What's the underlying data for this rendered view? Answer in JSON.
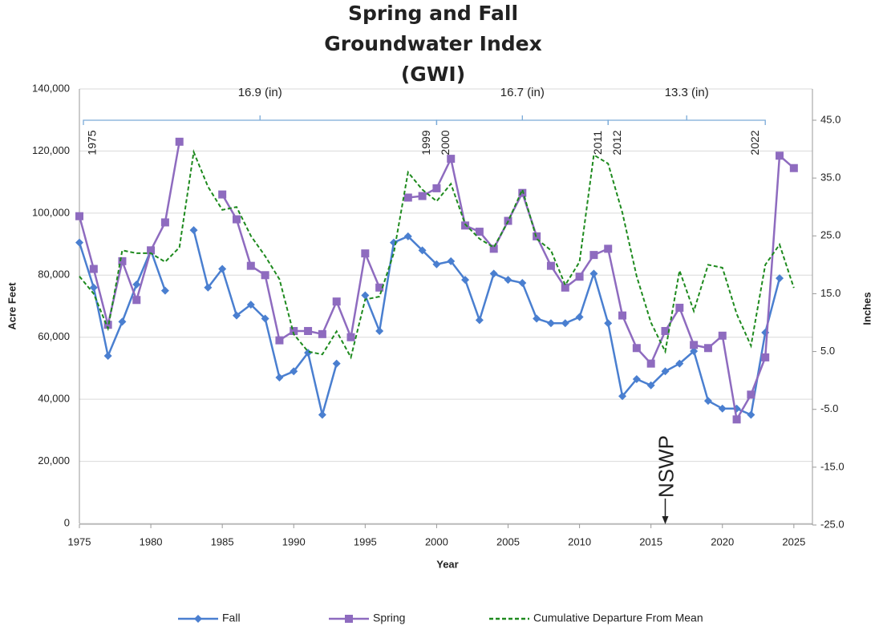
{
  "chart_data": {
    "type": "line",
    "title": [
      "Spring and Fall",
      "Groundwater Index",
      "(GWI)"
    ],
    "x_label": "Year",
    "y_label": "Acre Feet",
    "y2_label": "Inches",
    "x": [
      1975,
      1976,
      1977,
      1978,
      1979,
      1980,
      1981,
      1982,
      1983,
      1984,
      1985,
      1986,
      1987,
      1988,
      1989,
      1990,
      1991,
      1992,
      1993,
      1994,
      1995,
      1996,
      1997,
      1998,
      1999,
      2000,
      2001,
      2002,
      2003,
      2004,
      2005,
      2006,
      2007,
      2008,
      2009,
      2010,
      2011,
      2012,
      2013,
      2014,
      2015,
      2016,
      2017,
      2018,
      2019,
      2020,
      2021,
      2022,
      2023,
      2024,
      2025
    ],
    "series": [
      {
        "name": "Fall",
        "color": "#4a7fd0",
        "marker": "diamond",
        "values": [
          90500,
          76000,
          54000,
          65000,
          77000,
          88000,
          75000,
          null,
          94500,
          76000,
          82000,
          67000,
          70500,
          66000,
          47000,
          49000,
          55000,
          35000,
          51500,
          null,
          73500,
          62000,
          90500,
          92500,
          88000,
          83500,
          84500,
          78500,
          65500,
          80500,
          78500,
          77500,
          66000,
          64500,
          64500,
          66500,
          80500,
          64500,
          41000,
          46500,
          44500,
          49000,
          51500,
          55500,
          39500,
          37000,
          37000,
          35000,
          61500,
          79000,
          null
        ]
      },
      {
        "name": "Spring",
        "color": "#8e6bbf",
        "marker": "square",
        "values": [
          99000,
          82000,
          64000,
          84500,
          72000,
          88000,
          97000,
          123000,
          null,
          null,
          106000,
          98000,
          83000,
          80000,
          59000,
          62000,
          62000,
          61000,
          71500,
          60000,
          87000,
          76000,
          null,
          105000,
          105500,
          108000,
          117500,
          96000,
          94000,
          88500,
          97500,
          106500,
          92500,
          83000,
          76000,
          79500,
          86500,
          88500,
          67000,
          56500,
          51500,
          62000,
          69500,
          57500,
          56500,
          60500,
          33500,
          41500,
          53500,
          118500,
          114500
        ]
      },
      {
        "name": "Cumulative Departure From Mean",
        "color": "#1e8a1e",
        "dashed": true,
        "axis": "y2",
        "values": [
          18,
          15,
          9,
          22.5,
          22,
          22,
          20.5,
          23,
          39.5,
          33.5,
          29.5,
          30,
          25,
          21.5,
          17.5,
          8,
          5,
          4.5,
          8.5,
          4,
          14,
          14.5,
          22,
          36,
          33,
          31,
          34,
          27,
          24.5,
          23,
          27.5,
          33,
          24.5,
          22.5,
          16.5,
          20.5,
          39,
          37.5,
          29,
          18,
          10,
          5,
          19,
          12,
          20,
          19.5,
          11.5,
          6,
          20,
          23.5,
          16
        ]
      }
    ],
    "xlim": [
      1975,
      2026.3
    ],
    "xticks": [
      1975,
      1980,
      1985,
      1990,
      1995,
      2000,
      2005,
      2010,
      2015,
      2020,
      2025
    ],
    "ylim": [
      0,
      140000
    ],
    "yticks": [
      0,
      {
        "value": 20000,
        "label": "20,000"
      },
      {
        "value": 40000,
        "label": "40,000"
      },
      {
        "value": 60000,
        "label": "60,000"
      },
      {
        "value": 80000,
        "label": "80,000"
      },
      {
        "value": 100000,
        "label": "100,000"
      },
      {
        "value": 120000,
        "label": "120,000"
      },
      {
        "value": 140000,
        "label": "140,000"
      }
    ],
    "y2lim": [
      -25,
      45
    ],
    "y2ticks": [
      {
        "value": -25,
        "label": "-25.0"
      },
      {
        "value": -15,
        "label": "-15.0"
      },
      {
        "value": -5,
        "label": "-5.0"
      },
      {
        "value": 5,
        "label": "5.0"
      },
      {
        "value": 15,
        "label": "15.0"
      },
      {
        "value": 25,
        "label": "25.0"
      },
      {
        "value": 35,
        "label": "35.0"
      },
      {
        "value": 45,
        "label": "45.0"
      }
    ],
    "grid": true,
    "legend": "bottom",
    "periods": [
      {
        "label": "16.9 (in)",
        "start": "1975",
        "end": "1999"
      },
      {
        "label": "16.7 (in)",
        "start": "2000",
        "end": "2011"
      },
      {
        "label": "13.3 (in)",
        "start": "2012",
        "end": "2022"
      }
    ],
    "nswp": {
      "text": "NSWP",
      "x": 2016
    }
  }
}
